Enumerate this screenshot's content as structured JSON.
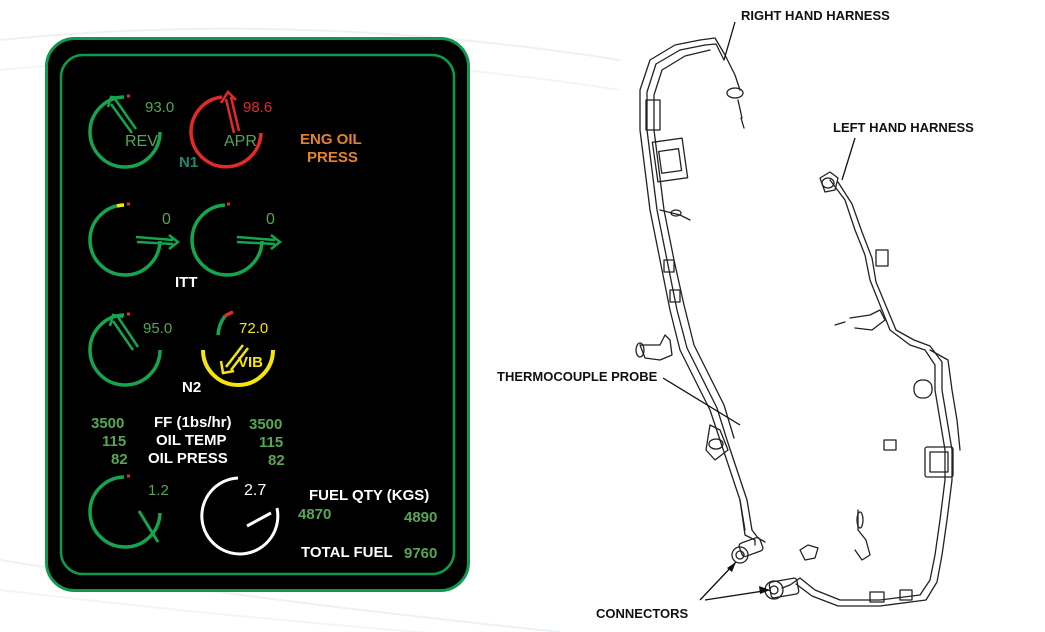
{
  "colors": {
    "panel_bg": "#000000",
    "border": "#0e9a4a",
    "green": "#14a54e",
    "text_green": "#56a656",
    "red": "#e52929",
    "yellow": "#f5e50a",
    "orange": "#e8822a",
    "teal": "#1a8a72",
    "white": "#ffffff"
  },
  "panel": {
    "n1": {
      "left": "93.0",
      "left_label": "REV",
      "right": "98.6",
      "right_label": "APR",
      "caption": "N1"
    },
    "eng_oil_press": [
      "ENG OIL",
      "PRESS"
    ],
    "itt": {
      "left": "0",
      "right": "0",
      "caption": "ITT"
    },
    "n2": {
      "left": "95.0",
      "right": "72.0",
      "right_label": "VIB",
      "caption": "N2"
    },
    "engine_table": {
      "labels": [
        "FF (1bs/hr)",
        "OIL TEMP",
        "OIL PRESS"
      ],
      "left": [
        "3500",
        "115",
        "82"
      ],
      "right": [
        "3500",
        "115",
        "82"
      ]
    },
    "fuel": {
      "left_gauge": "1.2",
      "right_gauge": "2.7",
      "qty_label": "FUEL QTY (KGS)",
      "left_qty": "4870",
      "right_qty": "4890",
      "total_label": "TOTAL FUEL",
      "total": "9760"
    }
  },
  "harness_labels": {
    "right_hand": "RIGHT HAND HARNESS",
    "left_hand": "LEFT HAND HARNESS",
    "thermocouple": "THERMOCOUPLE PROBE",
    "connectors": "CONNECTORS"
  }
}
